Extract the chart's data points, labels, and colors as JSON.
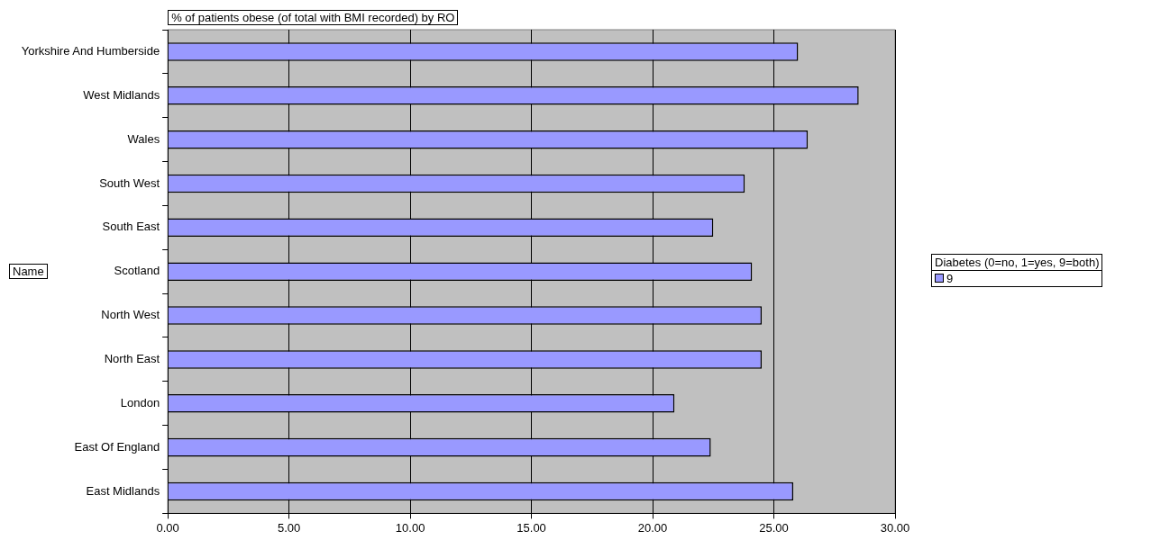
{
  "chart_data": {
    "type": "bar",
    "orientation": "horizontal",
    "title": "% of patients obese (of total with BMI recorded) by RO",
    "ylabel": "Name",
    "legend_title": "Diabetes (0=no, 1=yes, 9=both)",
    "categories": [
      "Yorkshire And Humberside",
      "West Midlands",
      "Wales",
      "South West",
      "South East",
      "Scotland",
      "North West",
      "North East",
      "London",
      "East Of England",
      "East Midlands"
    ],
    "series": [
      {
        "name": "9",
        "color": "#9999ff",
        "values": [
          26.0,
          28.5,
          26.4,
          23.8,
          22.5,
          24.1,
          24.5,
          24.5,
          20.9,
          22.4,
          25.8
        ]
      }
    ],
    "xlim": [
      0,
      30
    ],
    "xticks": [
      {
        "value": 0,
        "label": "0.00"
      },
      {
        "value": 5,
        "label": "5.00"
      },
      {
        "value": 10,
        "label": "10.00"
      },
      {
        "value": 15,
        "label": "15.00"
      },
      {
        "value": 20,
        "label": "20.00"
      },
      {
        "value": 25,
        "label": "25.00"
      },
      {
        "value": 30,
        "label": "30.00"
      }
    ],
    "grid": "x",
    "legend": "right"
  }
}
